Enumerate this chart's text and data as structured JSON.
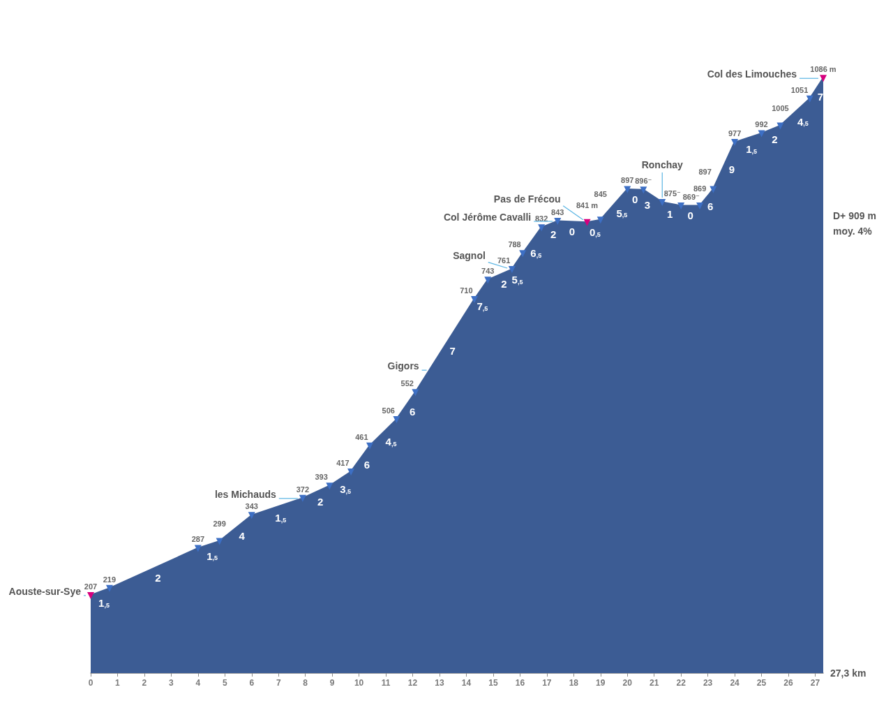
{
  "chart_data": {
    "type": "area",
    "color": "#3c5c94",
    "marker": "triangle",
    "colors": [
      "#d6007e",
      "#3d6fc4",
      "#3d6fc4",
      "#3d6fc4",
      "#3d6fc4",
      "#3d6fc4",
      "#3d6fc4",
      "#3d6fc4",
      "#3d6fc4",
      "#3d6fc4",
      "#3d6fc4",
      "#3d6fc4",
      "#3d6fc4",
      "#3d6fc4",
      "#3d6fc4",
      "#3d6fc4",
      "#3d6fc4",
      "#d6007e",
      "#3d6fc4",
      "#3d6fc4",
      "#3d6fc4",
      "#3d6fc4",
      "#3d6fc4",
      "#3d6fc4",
      "#3d6fc4",
      "#3d6fc4",
      "#3d6fc4",
      "#3d6fc4",
      "#3d6fc4",
      "#d6007e"
    ],
    "x": [
      0,
      0.7,
      4.0,
      4.8,
      6.0,
      7.9,
      8.9,
      9.7,
      10.4,
      11.4,
      12.1,
      14.3,
      14.8,
      15.7,
      16.1,
      16.8,
      17.4,
      18.5,
      19.0,
      20.0,
      20.6,
      21.3,
      22.0,
      22.7,
      23.2,
      24.0,
      25.0,
      25.7,
      26.8,
      27.3
    ],
    "values": [
      207,
      219,
      287,
      299,
      343,
      372,
      393,
      417,
      461,
      506,
      552,
      710,
      743,
      761,
      788,
      832,
      843,
      841,
      845,
      897,
      896,
      875,
      869,
      869,
      897,
      977,
      992,
      1005,
      1051,
      1086
    ],
    "value_labels": [
      "207",
      "219",
      "287",
      "299",
      "343",
      "372",
      "393",
      "417",
      "461",
      "506",
      "552",
      "710",
      "743",
      "761",
      "788",
      "832",
      "843",
      "841 m",
      "845",
      "897",
      "896⁻",
      "875⁻",
      "869⁻",
      "869",
      "897",
      "977",
      "992",
      "1005",
      "1051",
      "1086 m"
    ],
    "xlim": [
      0,
      27.3
    ],
    "xticks": [
      0,
      1,
      2,
      3,
      4,
      5,
      6,
      7,
      8,
      9,
      10,
      11,
      12,
      13,
      14,
      15,
      16,
      17,
      18,
      19,
      20,
      21,
      22,
      23,
      24,
      25,
      26,
      27
    ],
    "xlabel": "27,3 km",
    "tick_labels": "x",
    "annotations": [
      {
        "text": "Aouste-sur-Sye",
        "x": 0,
        "y": 207
      },
      {
        "text": "les Michauds",
        "x": 7.9,
        "y": 372
      },
      {
        "text": "Gigors",
        "x": 12.6,
        "y": 590
      },
      {
        "text": "Sagnol",
        "x": 15.7,
        "y": 761
      },
      {
        "text": "Col Jérôme Cavalli",
        "x": 17.4,
        "y": 843
      },
      {
        "text": "Pas de Frécou",
        "x": 18.5,
        "y": 841
      },
      {
        "text": "Ronchay",
        "x": 21.3,
        "y": 875
      },
      {
        "text": "Col des Limouches",
        "x": 27.3,
        "y": 1086
      },
      {
        "text": "1$_{,5}$",
        "x": 0.35,
        "y": 213
      },
      {
        "text": "2",
        "x": 2.35,
        "y": 253
      },
      {
        "text": "1$_{,5}$",
        "x": 4.4,
        "y": 293
      },
      {
        "text": "4",
        "x": 5.4,
        "y": 321
      },
      {
        "text": "1$_{,5}$",
        "x": 6.95,
        "y": 357.5
      },
      {
        "text": "2",
        "x": 8.4,
        "y": 382.5
      },
      {
        "text": "3$_{,5}$",
        "x": 9.3,
        "y": 405
      },
      {
        "text": "6",
        "x": 10.05,
        "y": 439
      },
      {
        "text": "4$_{,5}$",
        "x": 10.9,
        "y": 483.5
      },
      {
        "text": "6",
        "x": 11.75,
        "y": 529
      },
      {
        "text": "7",
        "x": 13.2,
        "y": 631
      },
      {
        "text": "7$_{,5}$",
        "x": 14.55,
        "y": 726.5
      },
      {
        "text": "2",
        "x": 15.25,
        "y": 752
      },
      {
        "text": "5$_{,5}$",
        "x": 15.9,
        "y": 774.5
      },
      {
        "text": "6$_{,5}$",
        "x": 16.45,
        "y": 810
      },
      {
        "text": "2",
        "x": 17.1,
        "y": 837.5
      },
      {
        "text": "0",
        "x": 17.95,
        "y": 842
      },
      {
        "text": "0$_{,5}$",
        "x": 18.75,
        "y": 843
      },
      {
        "text": "5$_{,5}$",
        "x": 19.5,
        "y": 871
      },
      {
        "text": "0",
        "x": 20.3,
        "y": 896.5
      },
      {
        "text": "3",
        "x": 20.95,
        "y": 885.5
      },
      {
        "text": "1",
        "x": 21.65,
        "y": 872
      },
      {
        "text": "0",
        "x": 22.35,
        "y": 869
      },
      {
        "text": "6",
        "x": 22.95,
        "y": 883
      },
      {
        "text": "9",
        "x": 23.6,
        "y": 937
      },
      {
        "text": "1$_{,5}$",
        "x": 24.5,
        "y": 984.5
      },
      {
        "text": "2",
        "x": 25.35,
        "y": 998.5
      },
      {
        "text": "4$_{,5}$",
        "x": 26.25,
        "y": 1028
      },
      {
        "text": "7",
        "x": 27.05,
        "y": 1068.5
      },
      "D+ 909 m",
      "moy. 4%"
    ]
  }
}
